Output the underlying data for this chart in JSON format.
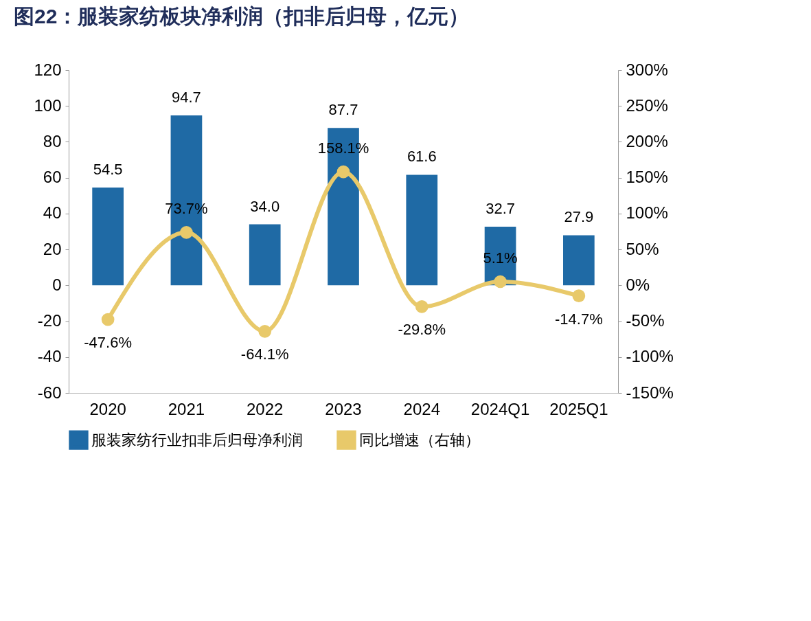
{
  "chart_data": {
    "type": "bar",
    "title": "图22：服装家纺板块净利润（扣非后归母，亿元）",
    "categories": [
      "2020",
      "2021",
      "2022",
      "2023",
      "2024",
      "2024Q1",
      "2025Q1"
    ],
    "series": [
      {
        "name": "服装家纺行业扣非后归母净利润",
        "color": "#1f6aa5",
        "values": [
          54.5,
          94.7,
          34.0,
          87.7,
          61.6,
          32.7,
          27.9
        ],
        "value_labels": [
          "54.5",
          "94.7",
          "34.0",
          "87.7",
          "61.6",
          "32.7",
          "27.9"
        ]
      },
      {
        "name": "同比增速（右轴）",
        "type": "line",
        "axis": "y2",
        "color": "#e8c96a",
        "values": [
          -47.6,
          73.7,
          -64.1,
          158.1,
          -29.8,
          5.1,
          -14.7
        ],
        "value_labels": [
          "-47.6%",
          "73.7%",
          "-64.1%",
          "158.1%",
          "-29.8%",
          "5.1%",
          "-14.7%"
        ]
      }
    ],
    "ylim": [
      -60,
      120
    ],
    "yticks": [
      -60,
      -40,
      -20,
      0,
      20,
      40,
      60,
      80,
      100,
      120
    ],
    "y2lim": [
      -150,
      300
    ],
    "y2ticks": [
      {
        "value": -150,
        "label": "-150%"
      },
      {
        "value": -100,
        "label": "-100%"
      },
      {
        "value": -50,
        "label": "-50%"
      },
      {
        "value": 0,
        "label": "0%"
      },
      {
        "value": 50,
        "label": "50%"
      },
      {
        "value": 100,
        "label": "100%"
      },
      {
        "value": 150,
        "label": "150%"
      },
      {
        "value": 200,
        "label": "200%"
      },
      {
        "value": 250,
        "label": "250%"
      },
      {
        "value": 300,
        "label": "300%"
      }
    ],
    "marker": "circle",
    "grid": false,
    "legend": "bottom"
  }
}
